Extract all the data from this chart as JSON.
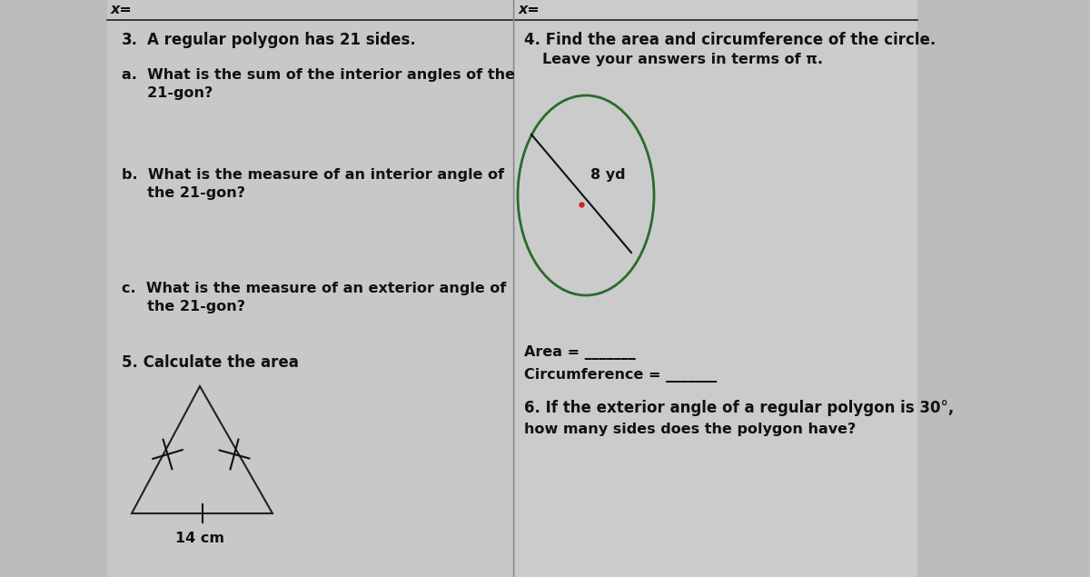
{
  "bg_color": "#bcbcbc",
  "panel_left_color": "#c8c8c8",
  "panel_right_color": "#cbcbcb",
  "text_color": "#111111",
  "underline_color": "#222222",
  "circle_color": "#2a6b2a",
  "triangle_color": "#222222",
  "x_label": "x=",
  "q3_number": "3.",
  "q3_title": "A regular polygon has 21 sides.",
  "q3a_line1": "a.  What is the sum of the interior angles of the",
  "q3a_line2": "     21-gon?",
  "q3b_line1": "b.  What is the measure of an interior angle of",
  "q3b_line2": "     the 21-gon?",
  "q3c_line1": "c.  What is the measure of an exterior angle of",
  "q3c_line2": "     the 21-gon?",
  "q4_header": "4. Find the area and circumference of the circle.",
  "q4_subtitle": "Leave your answers in terms of π.",
  "circle_label": "8 yd",
  "area_label": "Area = _______",
  "circ_label": "Circumference = _______",
  "q5_title": "5. Calculate the area",
  "base_label": "14 cm",
  "q6_line1": "6. If the exterior angle of a regular polygon is 30°,",
  "q6_line2": "how many sides does the polygon have?",
  "font_size": 11.5,
  "font_size_header": 12
}
